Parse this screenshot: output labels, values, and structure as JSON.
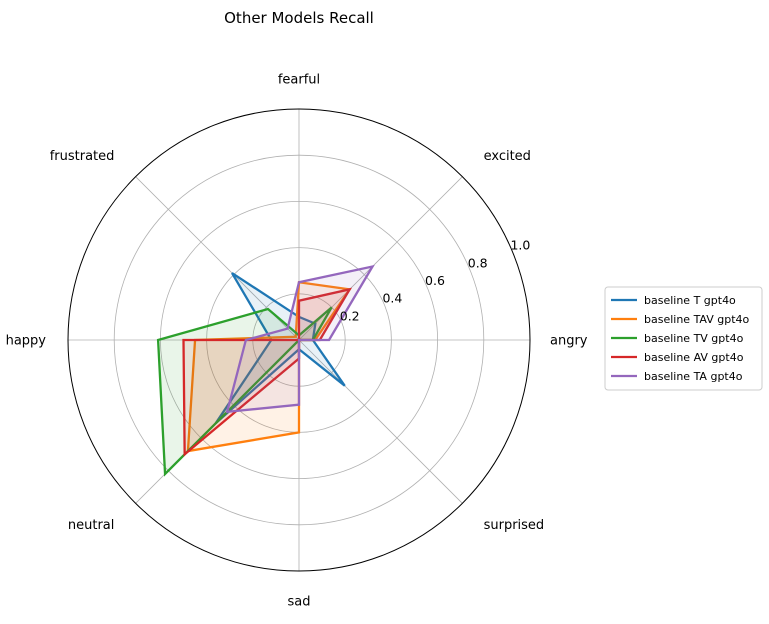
{
  "chart_data": {
    "type": "radar",
    "title": "Other Models Recall",
    "categories": [
      "angry",
      "excited",
      "fearful",
      "frustrated",
      "happy",
      "neutral",
      "sad",
      "surprised"
    ],
    "rlim": [
      0,
      1.0
    ],
    "rticks": [
      0.2,
      0.4,
      0.6,
      0.8,
      1.0
    ],
    "rtick_labels": [
      "0.2",
      "0.4",
      "0.6",
      "0.8",
      "1.0"
    ],
    "grid": true,
    "legend_position": "right",
    "series": [
      {
        "name": "baseline T gpt4o",
        "color": "#1f77b4",
        "values": [
          0.06,
          0.1,
          0.1,
          0.41,
          0.12,
          0.51,
          0.04,
          0.28
        ]
      },
      {
        "name": "baseline TAV gpt4o",
        "color": "#ff7f0e",
        "values": [
          0.07,
          0.31,
          0.25,
          0.02,
          0.45,
          0.68,
          0.4,
          0.0
        ]
      },
      {
        "name": "baseline TV gpt4o",
        "color": "#2ca02c",
        "values": [
          0.06,
          0.2,
          0.02,
          0.19,
          0.61,
          0.82,
          0.0,
          0.0
        ]
      },
      {
        "name": "baseline AV gpt4o",
        "color": "#d62728",
        "values": [
          0.09,
          0.31,
          0.17,
          0.0,
          0.5,
          0.7,
          0.08,
          0.0
        ]
      },
      {
        "name": "baseline TA gpt4o",
        "color": "#9467bd",
        "values": [
          0.13,
          0.45,
          0.25,
          0.07,
          0.23,
          0.44,
          0.28,
          0.0
        ]
      }
    ]
  }
}
